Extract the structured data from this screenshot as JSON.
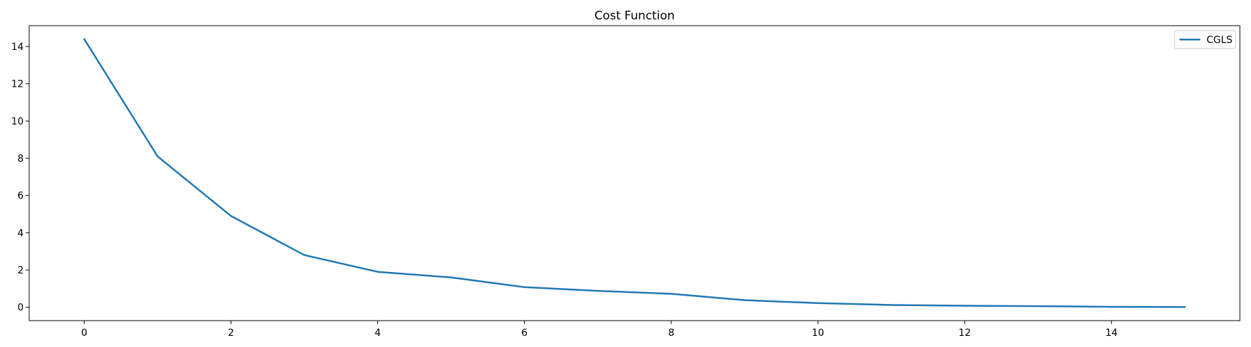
{
  "chart_data": {
    "type": "line",
    "title": "Cost Function",
    "xlabel": "",
    "ylabel": "",
    "xlim": [
      -0.75,
      15.75
    ],
    "ylim": [
      -0.72,
      15.12
    ],
    "x_ticks": [
      0,
      2,
      4,
      6,
      8,
      10,
      12,
      14
    ],
    "y_ticks": [
      0,
      2,
      4,
      6,
      8,
      10,
      12,
      14
    ],
    "grid": false,
    "legend_position": "top-right",
    "series": [
      {
        "name": "CGLS",
        "color": "#1f77b4",
        "x": [
          0,
          1,
          2,
          3,
          4,
          5,
          6,
          7,
          8,
          9,
          10,
          11,
          12,
          13,
          14,
          15
        ],
        "y": [
          14.4,
          8.1,
          4.9,
          2.8,
          1.9,
          1.6,
          1.08,
          0.88,
          0.72,
          0.38,
          0.22,
          0.12,
          0.08,
          0.06,
          0.02,
          0.01
        ]
      }
    ]
  }
}
